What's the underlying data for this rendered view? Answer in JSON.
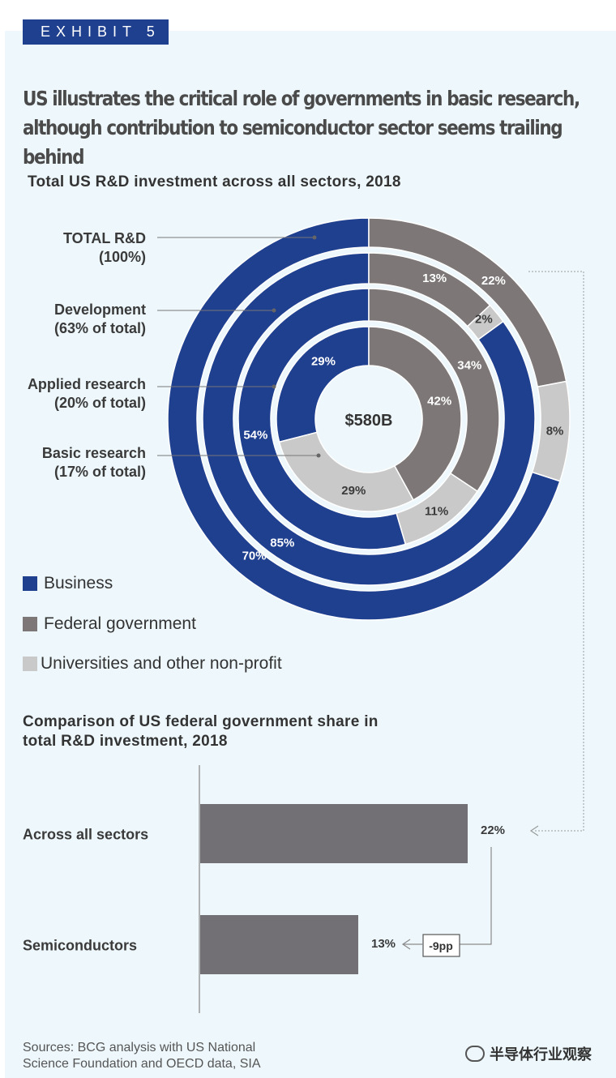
{
  "exhibit_label": "EXHIBIT 5",
  "headline": [
    "US illustrates the critical role of governments in basic research,",
    "although contribution to semiconductor sector seems trailing behind"
  ],
  "colors": {
    "business": "#1f3f8f",
    "federal_government": "#7d7777",
    "universities": "#c9c9c9",
    "bar": "#727074",
    "panel": "#eef8fc"
  },
  "chart_data": [
    {
      "type": "pie",
      "title": "Total US R&D investment across all sectors, 2018",
      "center_label": "$580B",
      "legend": [
        "Business",
        "Federal government",
        "Universities and other non-profit"
      ],
      "rings": [
        {
          "name": "TOTAL R&D",
          "share_note": "(100%)",
          "values": {
            "Business": 70,
            "Federal government": 22,
            "Universities and other non-profit": 8
          },
          "labels": [
            "70%",
            "22%",
            "8%"
          ]
        },
        {
          "name": "Development",
          "share_note": "(63% of total)",
          "values": {
            "Business": 85,
            "Federal government": 13,
            "Universities and other non-profit": 2
          },
          "labels": [
            "85%",
            "13%",
            "2%"
          ]
        },
        {
          "name": "Applied research",
          "share_note": "(20% of total)",
          "values": {
            "Business": 54,
            "Federal government": 34,
            "Universities and other non-profit": 11
          },
          "labels": [
            "54%",
            "34%",
            "11%"
          ]
        },
        {
          "name": "Basic research",
          "share_note": "(17% of total)",
          "values": {
            "Business": 29,
            "Federal government": 42,
            "Universities and other non-profit": 29
          },
          "labels": [
            "29%",
            "42%",
            "29%"
          ]
        }
      ]
    },
    {
      "type": "bar",
      "title": "Comparison of US federal government share in total R&D investment, 2018",
      "categories": [
        "Across all sectors",
        "Semiconductors"
      ],
      "values": [
        22,
        13
      ],
      "value_labels": [
        "22%",
        "13%"
      ],
      "annotation": "-9pp"
    }
  ],
  "sources": [
    "Sources: BCG analysis with US National",
    "Science Foundation and OECD data, SIA"
  ],
  "watermark": "半导体行业观察"
}
